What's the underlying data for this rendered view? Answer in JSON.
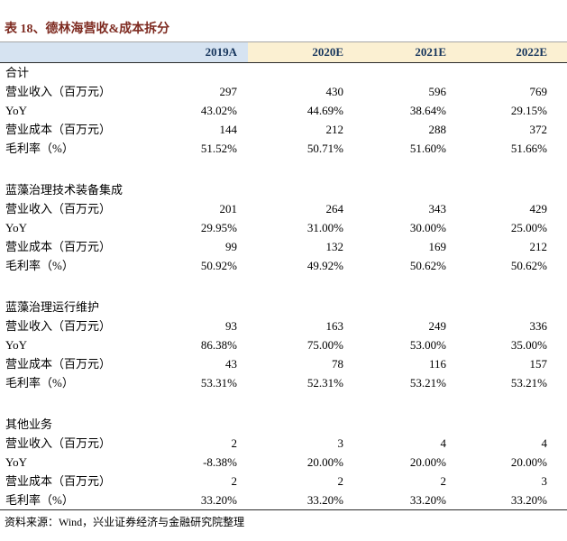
{
  "title": "表 18、德林海营收&成本拆分",
  "table": {
    "header": {
      "row_label": "",
      "columns": [
        "2019A",
        "2020E",
        "2021E",
        "2022E"
      ]
    },
    "sections": [
      {
        "name": "合计",
        "rows": [
          {
            "label": "营业收入（百万元）",
            "values": [
              "297",
              "430",
              "596",
              "769"
            ]
          },
          {
            "label": "YoY",
            "values": [
              "43.02%",
              "44.69%",
              "38.64%",
              "29.15%"
            ]
          },
          {
            "label": "营业成本（百万元）",
            "values": [
              "144",
              "212",
              "288",
              "372"
            ]
          },
          {
            "label": "毛利率（%）",
            "values": [
              "51.52%",
              "50.71%",
              "51.60%",
              "51.66%"
            ]
          }
        ]
      },
      {
        "name": "蓝藻治理技术装备集成",
        "rows": [
          {
            "label": "营业收入（百万元）",
            "values": [
              "201",
              "264",
              "343",
              "429"
            ]
          },
          {
            "label": "YoY",
            "values": [
              "29.95%",
              "31.00%",
              "30.00%",
              "25.00%"
            ]
          },
          {
            "label": "营业成本（百万元）",
            "values": [
              "99",
              "132",
              "169",
              "212"
            ]
          },
          {
            "label": "毛利率（%）",
            "values": [
              "50.92%",
              "49.92%",
              "50.62%",
              "50.62%"
            ]
          }
        ]
      },
      {
        "name": "蓝藻治理运行维护",
        "rows": [
          {
            "label": "营业收入（百万元）",
            "values": [
              "93",
              "163",
              "249",
              "336"
            ]
          },
          {
            "label": "YoY",
            "values": [
              "86.38%",
              "75.00%",
              "53.00%",
              "35.00%"
            ]
          },
          {
            "label": "营业成本（百万元）",
            "values": [
              "43",
              "78",
              "116",
              "157"
            ]
          },
          {
            "label": "毛利率（%）",
            "values": [
              "53.31%",
              "52.31%",
              "53.21%",
              "53.21%"
            ]
          }
        ]
      },
      {
        "name": "其他业务",
        "rows": [
          {
            "label": "营业收入（百万元）",
            "values": [
              "2",
              "3",
              "4",
              "4"
            ]
          },
          {
            "label": "YoY",
            "values": [
              "-8.38%",
              "20.00%",
              "20.00%",
              "20.00%"
            ]
          },
          {
            "label": "营业成本（百万元）",
            "values": [
              "2",
              "2",
              "2",
              "3"
            ]
          },
          {
            "label": "毛利率（%）",
            "values": [
              "33.20%",
              "33.20%",
              "33.20%",
              "33.20%"
            ]
          }
        ]
      }
    ]
  },
  "footer": {
    "source": "资料来源：Wind，兴业证券经济与金融研究院整理"
  },
  "colors": {
    "title": "#7E2B21",
    "header_actual_bg": "#D6E3F1",
    "header_estimate_bg": "#FBF0D2",
    "header_text": "#17365D",
    "header_top_border": "#A6A6A6",
    "header_bottom_border": "#2B2B2B",
    "footer_border": "#2B2B2B"
  }
}
